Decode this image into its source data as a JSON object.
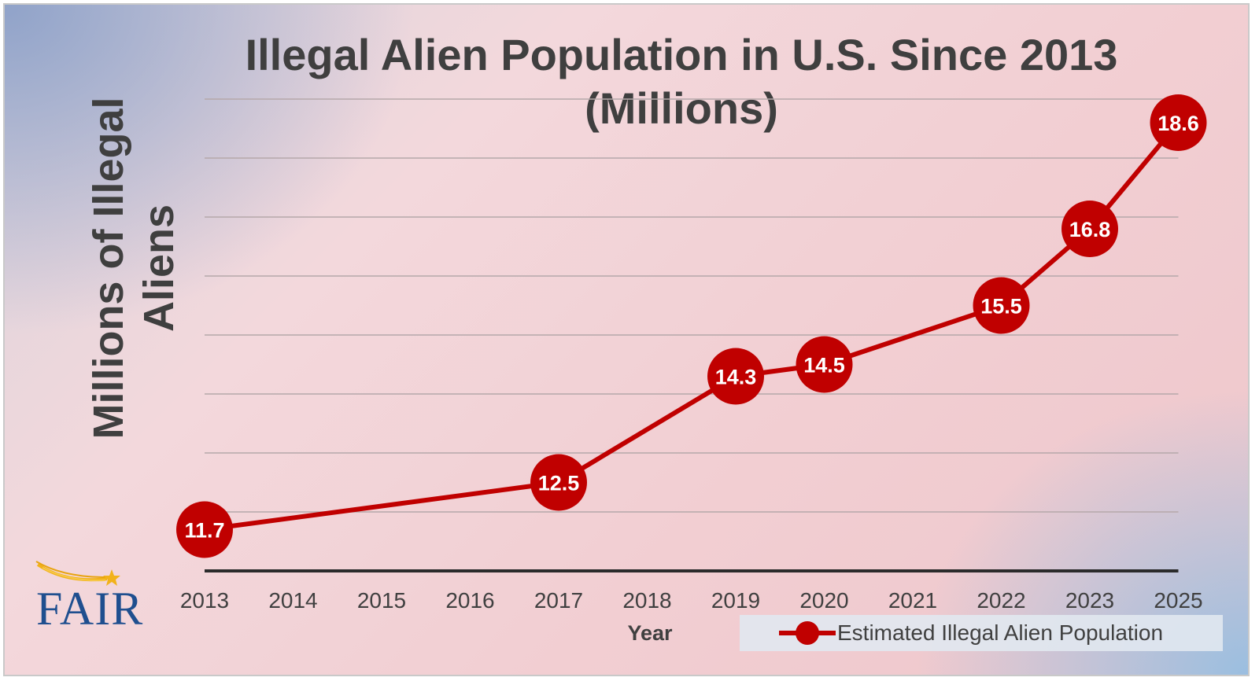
{
  "chart_data": {
    "type": "line",
    "title_line1": "Illegal Alien Population in U.S. Since 2013",
    "title_line2": "(Millions)",
    "xlabel": "Year",
    "ylabel_line1": "Millions of Illegal",
    "ylabel_line2": "Aliens",
    "categories": [
      "2013",
      "2014",
      "2015",
      "2016",
      "2017",
      "2018",
      "2019",
      "2020",
      "2021",
      "2022",
      "2023",
      "2025"
    ],
    "series": [
      {
        "name": "Estimated Illegal Alien Population",
        "color": "#c00000",
        "points": [
          {
            "x": "2013",
            "y": 11.7,
            "label": "11.7"
          },
          {
            "x": "2017",
            "y": 12.5,
            "label": "12.5"
          },
          {
            "x": "2019",
            "y": 14.3,
            "label": "14.3"
          },
          {
            "x": "2020",
            "y": 14.5,
            "label": "14.5"
          },
          {
            "x": "2022",
            "y": 15.5,
            "label": "15.5"
          },
          {
            "x": "2023",
            "y": 16.8,
            "label": "16.8"
          },
          {
            "x": "2025",
            "y": 18.6,
            "label": "18.6"
          }
        ]
      }
    ],
    "ylim": [
      11,
      19
    ],
    "y_gridlines": [
      11,
      12,
      13,
      14,
      15,
      16,
      17,
      18,
      19
    ],
    "y_tick_labels_shown": false,
    "grid": true,
    "legend_position": "bottom-right"
  },
  "branding": {
    "logo_text": "FAIR",
    "logo_icon": "shooting-star-icon",
    "logo_color": "#1f4f8f",
    "star_color": "#f2b21a"
  }
}
